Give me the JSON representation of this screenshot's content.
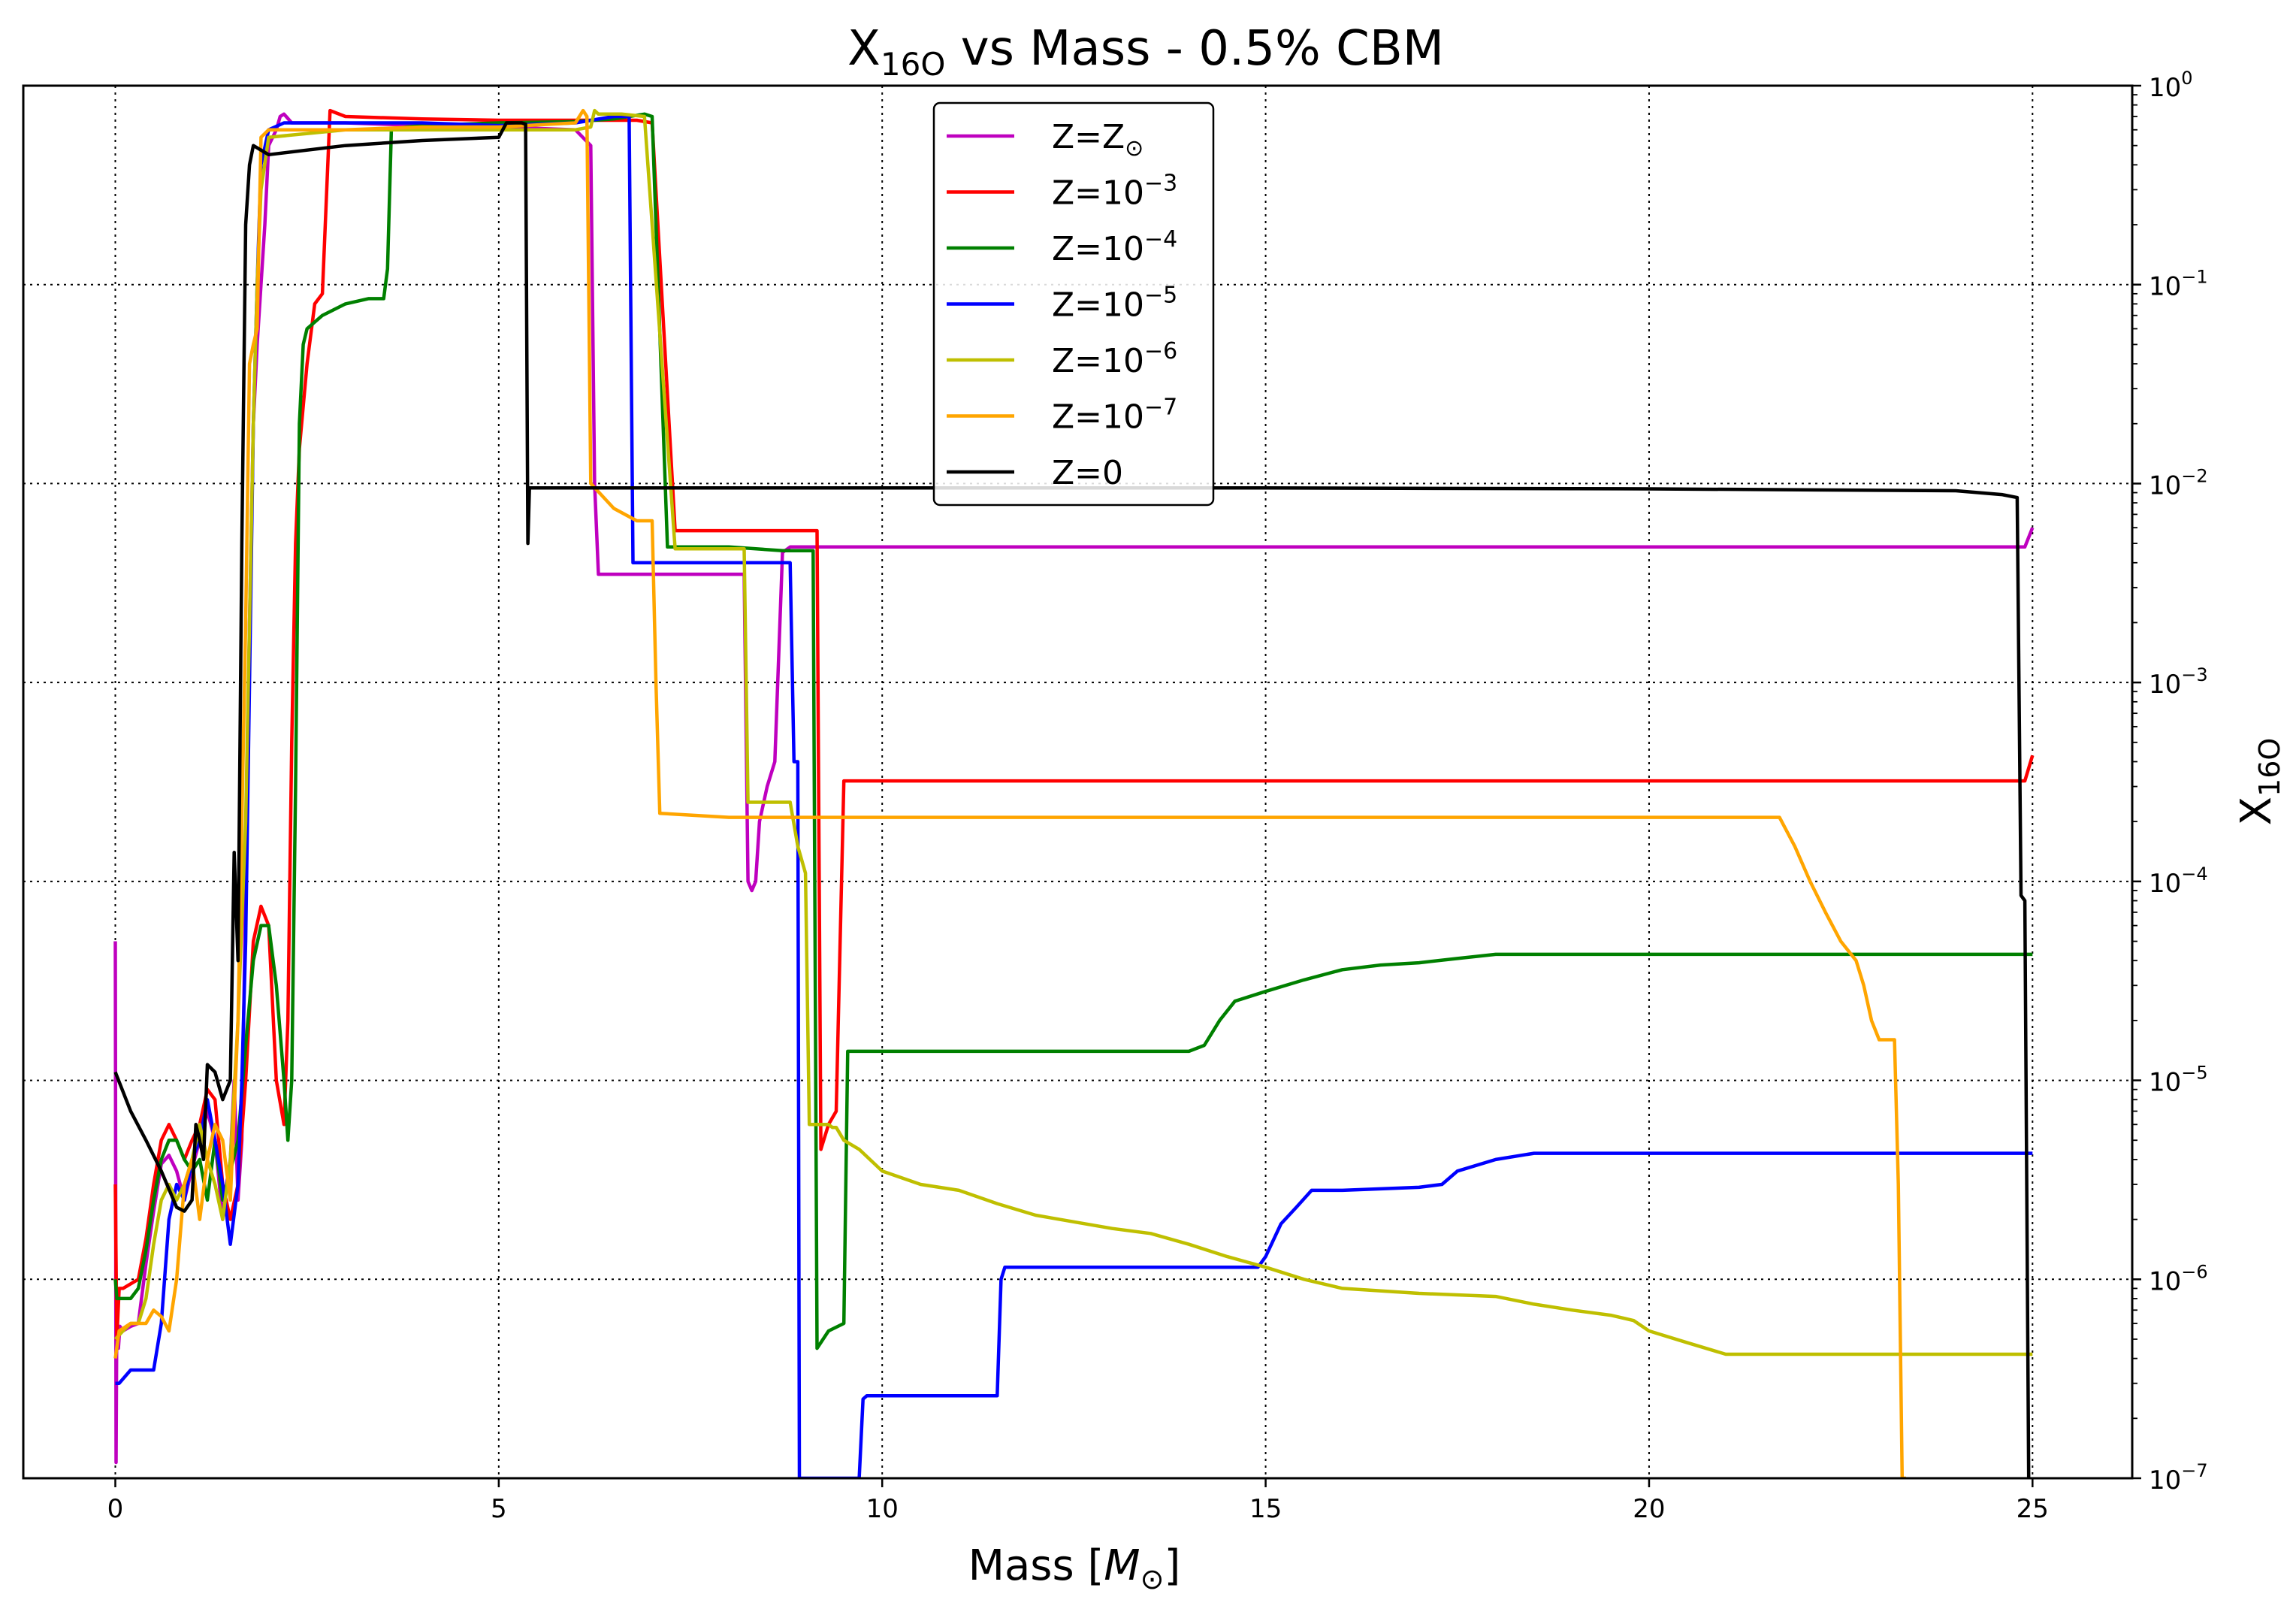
{
  "chart_data": {
    "type": "line",
    "title": {
      "main": "X",
      "sub": "16O",
      "rest": " vs Mass - 0.5% CBM"
    },
    "xlabel": {
      "main": "Mass [",
      "italic": "M",
      "sub": "⊙",
      "close": "]"
    },
    "ylabel": {
      "main": "X",
      "sub": "16O"
    },
    "xlim": [
      -1.2,
      26.3
    ],
    "ylim": [
      1e-07,
      1
    ],
    "yscale": "log",
    "x_ticks": [
      0,
      5,
      10,
      15,
      20,
      25
    ],
    "y_ticks": [
      {
        "value": 1e-07,
        "base": "10",
        "exp": "−7"
      },
      {
        "value": 1e-06,
        "base": "10",
        "exp": "−6"
      },
      {
        "value": 1e-05,
        "base": "10",
        "exp": "−5"
      },
      {
        "value": 0.0001,
        "base": "10",
        "exp": "−4"
      },
      {
        "value": 0.001,
        "base": "10",
        "exp": "−3"
      },
      {
        "value": 0.01,
        "base": "10",
        "exp": "−2"
      },
      {
        "value": 0.1,
        "base": "10",
        "exp": "−1"
      },
      {
        "value": 1,
        "base": "10",
        "exp": "0"
      }
    ],
    "y_axis_side": "right",
    "grid": true,
    "legend_position": "top-center",
    "series": [
      {
        "name": "Z=Z⊙",
        "label": {
          "main": "Z=Z",
          "sub": "⊙"
        },
        "color": "#bf00bf",
        "x": [
          0.0,
          0.01,
          0.02,
          0.04,
          0.06,
          0.1,
          0.2,
          0.3,
          0.4,
          0.5,
          0.6,
          0.7,
          0.8,
          0.9,
          1.0,
          1.1,
          1.2,
          1.3,
          1.4,
          1.45,
          1.5,
          1.55,
          1.6,
          1.65,
          1.7,
          1.75,
          1.8,
          1.85,
          1.9,
          1.95,
          2.0,
          2.1,
          2.15,
          2.2,
          2.3,
          3.0,
          4.0,
          5.0,
          6.0,
          6.2,
          6.25,
          6.3,
          6.6,
          6.9,
          7.0,
          7.3,
          8.0,
          8.2,
          8.25,
          8.3,
          8.35,
          8.4,
          8.5,
          8.6,
          8.7,
          8.8,
          9.0,
          10.0,
          15.0,
          20.0,
          24.9,
          25.0
        ],
        "y": [
          5e-05,
          1.2e-07,
          7e-07,
          4.5e-07,
          5.8e-07,
          5.5e-07,
          5.8e-07,
          6e-07,
          1.2e-06,
          2.2e-06,
          3.8e-06,
          4.2e-06,
          3.5e-06,
          2.5e-06,
          3.6e-06,
          5e-06,
          7e-06,
          5e-06,
          2e-06,
          3e-06,
          4e-06,
          1e-05,
          2.5e-06,
          5e-06,
          0.0001,
          0.002,
          0.02,
          0.05,
          0.1,
          0.2,
          0.5,
          0.6,
          0.7,
          0.72,
          0.65,
          0.65,
          0.63,
          0.62,
          0.6,
          0.5,
          0.01,
          0.0035,
          0.0035,
          0.0035,
          0.0035,
          0.0035,
          0.0035,
          0.0035,
          0.0001,
          9e-05,
          0.0001,
          0.0002,
          0.0003,
          0.0004,
          0.0045,
          0.0048,
          0.0048,
          0.0048,
          0.0048,
          0.0048,
          0.0048,
          0.006
        ]
      },
      {
        "name": "Z=10⁻³",
        "label": {
          "main": "Z=10",
          "sup": "−3"
        },
        "color": "#ff0000",
        "x": [
          0.0,
          0.02,
          0.05,
          0.1,
          0.3,
          0.4,
          0.5,
          0.6,
          0.7,
          0.8,
          0.9,
          1.0,
          1.1,
          1.2,
          1.3,
          1.4,
          1.5,
          1.6,
          1.7,
          1.8,
          1.9,
          2.0,
          2.1,
          2.2,
          2.25,
          2.3,
          2.35,
          2.4,
          2.5,
          2.6,
          2.7,
          2.8,
          3.0,
          4.0,
          5.0,
          6.0,
          6.8,
          7.0,
          7.3,
          8.0,
          8.5,
          9.0,
          9.15,
          9.2,
          9.3,
          9.4,
          9.5,
          10.0,
          15.0,
          20.0,
          24.9,
          25.0
        ],
        "y": [
          3e-06,
          5e-07,
          9e-07,
          9e-07,
          1e-06,
          1.6e-06,
          3e-06,
          5e-06,
          6e-06,
          5e-06,
          4e-06,
          5e-06,
          6e-06,
          9e-06,
          8e-06,
          3e-06,
          2e-06,
          3e-06,
          1e-05,
          5e-05,
          7.5e-05,
          6e-05,
          1e-05,
          6e-06,
          2e-05,
          0.0005,
          0.005,
          0.015,
          0.04,
          0.08,
          0.09,
          0.75,
          0.7,
          0.68,
          0.67,
          0.67,
          0.67,
          0.65,
          0.0058,
          0.0058,
          0.0058,
          0.0058,
          0.0058,
          4.5e-06,
          6e-06,
          7e-06,
          0.00032,
          0.00032,
          0.00032,
          0.00032,
          0.00032,
          0.00043
        ]
      },
      {
        "name": "Z=10⁻⁴",
        "label": {
          "main": "Z=10",
          "sup": "−4"
        },
        "color": "#008000",
        "x": [
          0.0,
          0.02,
          0.1,
          0.2,
          0.3,
          0.4,
          0.5,
          0.6,
          0.7,
          0.8,
          0.9,
          1.0,
          1.1,
          1.2,
          1.3,
          1.4,
          1.5,
          1.6,
          1.7,
          1.8,
          1.9,
          2.0,
          2.1,
          2.2,
          2.25,
          2.3,
          2.35,
          2.4,
          2.45,
          2.5,
          2.7,
          3.0,
          3.3,
          3.5,
          3.55,
          3.6,
          3.8,
          4.0,
          5.0,
          6.0,
          6.5,
          6.9,
          7.0,
          7.2,
          8.0,
          8.7,
          9.1,
          9.15,
          9.3,
          9.5,
          9.55,
          10.0,
          12.0,
          14.0,
          14.2,
          14.4,
          14.6,
          15.0,
          15.5,
          16.0,
          16.5,
          17.0,
          17.5,
          18.0,
          20.0,
          25.0
        ],
        "y": [
          1e-06,
          8e-07,
          8e-07,
          8e-07,
          9e-07,
          1.4e-06,
          2.5e-06,
          4e-06,
          5e-06,
          5e-06,
          4e-06,
          3.5e-06,
          4e-06,
          2.5e-06,
          5e-06,
          2.5e-06,
          3.5e-06,
          5e-06,
          1.5e-05,
          4e-05,
          6e-05,
          6e-05,
          3e-05,
          1e-05,
          5e-06,
          1e-05,
          0.0003,
          0.02,
          0.05,
          0.06,
          0.07,
          0.08,
          0.085,
          0.085,
          0.12,
          0.6,
          0.62,
          0.63,
          0.65,
          0.66,
          0.68,
          0.72,
          0.7,
          0.0048,
          0.0048,
          0.0046,
          0.0046,
          4.5e-07,
          5.5e-07,
          6e-07,
          1.4e-05,
          1.4e-05,
          1.4e-05,
          1.4e-05,
          1.5e-05,
          2e-05,
          2.5e-05,
          2.8e-05,
          3.2e-05,
          3.6e-05,
          3.8e-05,
          3.9e-05,
          4.1e-05,
          4.3e-05,
          4.3e-05,
          4.3e-05
        ]
      },
      {
        "name": "Z=10⁻⁵",
        "label": {
          "main": "Z=10",
          "sup": "−5"
        },
        "color": "#0000ff",
        "x": [
          0.0,
          0.05,
          0.2,
          0.3,
          0.5,
          0.6,
          0.7,
          0.8,
          0.9,
          1.0,
          1.1,
          1.2,
          1.3,
          1.4,
          1.5,
          1.6,
          1.65,
          1.7,
          1.75,
          1.8,
          1.85,
          1.9,
          2.0,
          2.2,
          3.0,
          4.0,
          5.0,
          6.0,
          6.5,
          6.7,
          6.75,
          7.0,
          8.0,
          8.7,
          8.8,
          8.85,
          8.9,
          8.92,
          9.5,
          9.7,
          9.75,
          9.8,
          10.0,
          11.5,
          11.55,
          11.6,
          12.0,
          13.0,
          14.0,
          14.9,
          15.0,
          15.2,
          15.4,
          15.6,
          16.0,
          17.0,
          17.3,
          17.5,
          18.0,
          18.5,
          20.0,
          25.0
        ],
        "y": [
          3e-07,
          3e-07,
          3.5e-07,
          3.5e-07,
          3.5e-07,
          6e-07,
          2e-06,
          3e-06,
          2.5e-06,
          4e-06,
          5e-06,
          8e-06,
          5e-06,
          3e-06,
          1.5e-06,
          3e-06,
          1e-05,
          5e-05,
          0.001,
          0.02,
          0.1,
          0.4,
          0.6,
          0.65,
          0.65,
          0.65,
          0.63,
          0.65,
          0.7,
          0.7,
          0.004,
          0.004,
          0.004,
          0.004,
          0.004,
          0.0004,
          0.0004,
          1e-07,
          1e-07,
          1e-07,
          2.5e-07,
          2.6e-07,
          2.6e-07,
          2.6e-07,
          1e-06,
          1.15e-06,
          1.15e-06,
          1.15e-06,
          1.15e-06,
          1.15e-06,
          1.3e-06,
          1.9e-06,
          2.3e-06,
          2.8e-06,
          2.8e-06,
          2.9e-06,
          3e-06,
          3.5e-06,
          4e-06,
          4.3e-06,
          4.3e-06,
          4.3e-06
        ]
      },
      {
        "name": "Z=10⁻⁶",
        "label": {
          "main": "Z=10",
          "sup": "−6"
        },
        "color": "#bfbf00",
        "x": [
          0.0,
          0.1,
          0.2,
          0.3,
          0.4,
          0.5,
          0.6,
          0.7,
          0.8,
          0.9,
          1.0,
          1.1,
          1.2,
          1.3,
          1.4,
          1.5,
          1.6,
          1.7,
          1.75,
          1.8,
          1.85,
          1.9,
          2.0,
          3.0,
          4.0,
          5.0,
          6.0,
          6.2,
          6.25,
          6.3,
          6.6,
          6.9,
          7.3,
          8.0,
          8.2,
          8.25,
          8.3,
          8.8,
          8.9,
          9.0,
          9.05,
          9.3,
          9.35,
          9.4,
          9.5,
          9.7,
          10.0,
          10.5,
          11.0,
          11.5,
          12.0,
          13.0,
          13.5,
          14.0,
          14.5,
          15.0,
          15.5,
          16.0,
          17.0,
          18.0,
          18.5,
          19.0,
          19.5,
          19.8,
          20.0,
          20.5,
          21.0,
          22.0,
          25.0
        ],
        "y": [
          5e-07,
          5.5e-07,
          6e-07,
          6e-07,
          8e-07,
          1.5e-06,
          2.5e-06,
          3e-06,
          2.5e-06,
          3e-06,
          4e-06,
          6e-06,
          4e-06,
          3e-06,
          2e-06,
          4e-06,
          2e-05,
          0.0002,
          0.002,
          0.02,
          0.1,
          0.3,
          0.55,
          0.6,
          0.6,
          0.6,
          0.6,
          0.62,
          0.75,
          0.72,
          0.72,
          0.7,
          0.0047,
          0.0047,
          0.0047,
          0.00025,
          0.00025,
          0.00025,
          0.00015,
          0.00011,
          6e-06,
          6e-06,
          5.8e-06,
          5.8e-06,
          5e-06,
          4.5e-06,
          3.5e-06,
          3e-06,
          2.8e-06,
          2.4e-06,
          2.1e-06,
          1.8e-06,
          1.7e-06,
          1.5e-06,
          1.3e-06,
          1.15e-06,
          1e-06,
          9e-07,
          8.5e-07,
          8.2e-07,
          7.5e-07,
          7e-07,
          6.6e-07,
          6.2e-07,
          5.5e-07,
          4.8e-07,
          4.2e-07,
          4.2e-07,
          4.2e-07
        ]
      },
      {
        "name": "Z=10⁻⁷",
        "label": {
          "main": "Z=10",
          "sup": "−7"
        },
        "color": "#ffa500",
        "x": [
          0.0,
          0.05,
          0.2,
          0.3,
          0.4,
          0.5,
          0.6,
          0.7,
          0.8,
          0.9,
          1.0,
          1.1,
          1.2,
          1.3,
          1.4,
          1.5,
          1.6,
          1.7,
          1.75,
          1.8,
          1.85,
          1.9,
          2.0,
          3.0,
          4.0,
          5.0,
          6.0,
          6.1,
          6.15,
          6.2,
          6.5,
          6.8,
          7.0,
          7.05,
          7.1,
          8.0,
          10.0,
          15.0,
          20.0,
          21.0,
          21.7,
          21.9,
          22.1,
          22.3,
          22.5,
          22.7,
          22.8,
          22.9,
          23.0,
          23.2,
          23.25,
          23.3,
          23.35
        ],
        "y": [
          4e-07,
          5.5e-07,
          6e-07,
          6e-07,
          6e-07,
          7e-07,
          6.5e-07,
          5.5e-07,
          1e-06,
          3e-06,
          4e-06,
          2e-06,
          4e-06,
          6e-06,
          5e-06,
          2.5e-06,
          2e-05,
          0.002,
          0.04,
          0.05,
          0.06,
          0.55,
          0.6,
          0.6,
          0.62,
          0.62,
          0.65,
          0.75,
          0.7,
          0.01,
          0.0075,
          0.0065,
          0.0065,
          0.001,
          0.00022,
          0.00021,
          0.00021,
          0.00021,
          0.00021,
          0.00021,
          0.00021,
          0.00015,
          0.0001,
          7e-05,
          5e-05,
          4e-05,
          3e-05,
          2e-05,
          1.6e-05,
          1.6e-05,
          3e-06,
          1e-07,
          1e-07
        ]
      },
      {
        "name": "Z=0",
        "label": {
          "main": "Z=0"
        },
        "color": "#000000",
        "x": [
          0.0,
          0.2,
          0.4,
          0.6,
          0.8,
          0.9,
          1.0,
          1.05,
          1.1,
          1.15,
          1.2,
          1.3,
          1.4,
          1.5,
          1.55,
          1.6,
          1.65,
          1.7,
          1.75,
          1.8,
          2.0,
          3.0,
          4.0,
          5.0,
          5.1,
          5.15,
          5.3,
          5.35,
          5.38,
          5.4,
          5.41,
          6.0,
          10.0,
          15.0,
          20.0,
          24.0,
          24.6,
          24.8,
          24.85,
          24.9,
          24.95
        ],
        "y": [
          1.1e-05,
          7e-06,
          5e-06,
          3.5e-06,
          2.3e-06,
          2.2e-06,
          2.5e-06,
          6e-06,
          5e-06,
          4e-06,
          1.2e-05,
          1.1e-05,
          8e-06,
          1e-05,
          0.00014,
          4e-05,
          0.005,
          0.2,
          0.4,
          0.5,
          0.45,
          0.5,
          0.53,
          0.55,
          0.65,
          0.65,
          0.65,
          0.64,
          0.005,
          0.0095,
          0.0095,
          0.0095,
          0.0095,
          0.0095,
          0.0094,
          0.0092,
          0.0088,
          0.0085,
          8.5e-05,
          8e-05,
          1e-07
        ]
      }
    ]
  }
}
